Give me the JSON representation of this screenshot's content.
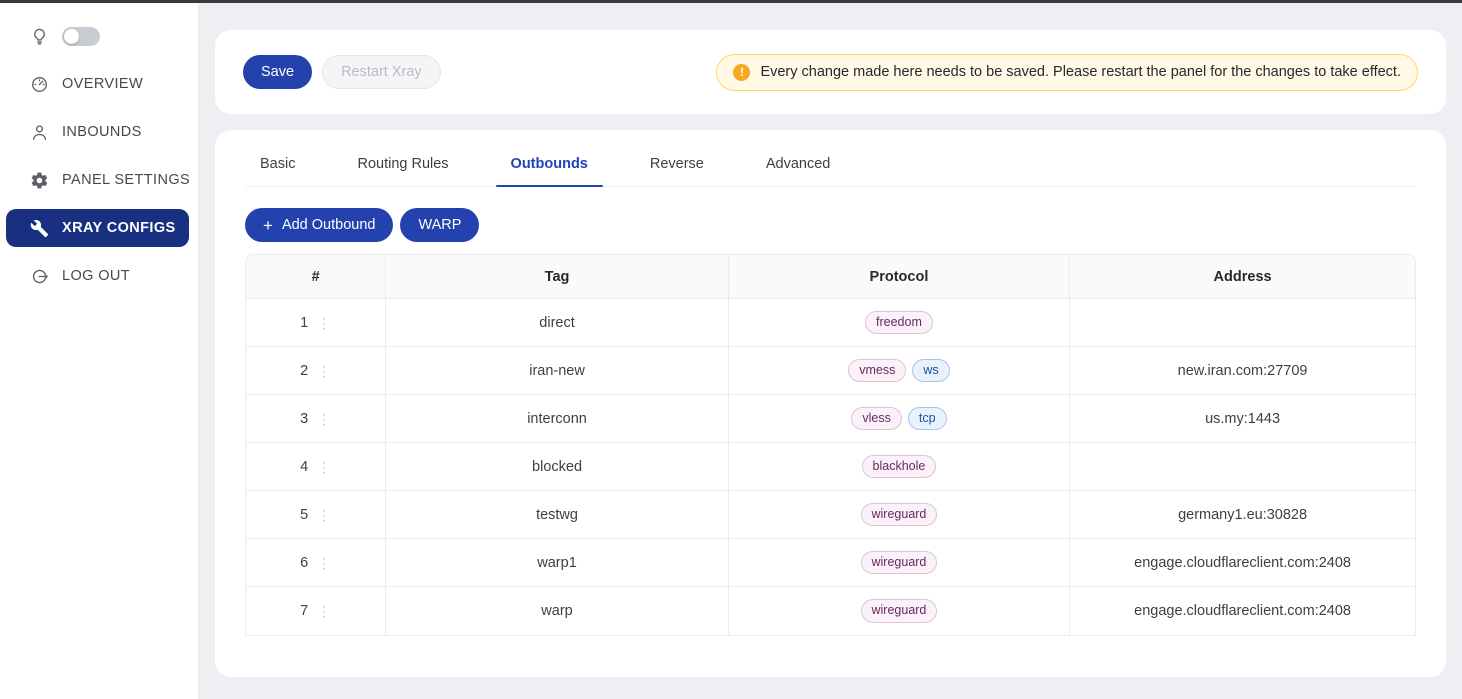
{
  "colors": {
    "primary_navy": "#2342ad",
    "sidebar_active_navy": "#192f7f",
    "tab_active_blue": "#1f42bd",
    "alert_bg": "#fff9e6",
    "alert_border": "#ffd666",
    "alert_icon_orange": "#f6a821",
    "tag_pink_text": "#6b2961",
    "tag_blue_text": "#1d4ea6"
  },
  "sidebar": {
    "theme_toggle": {
      "icon": "lightbulb-icon",
      "state": "off"
    },
    "items": [
      {
        "label": "OVERVIEW",
        "icon": "gauge-icon",
        "active": false
      },
      {
        "label": "INBOUNDS",
        "icon": "person-icon",
        "active": false
      },
      {
        "label": "PANEL SETTINGS",
        "icon": "gear-icon",
        "active": false
      },
      {
        "label": "XRAY CONFIGS",
        "icon": "wrench-icon",
        "active": true
      },
      {
        "label": "LOG OUT",
        "icon": "logout-icon",
        "active": false
      }
    ]
  },
  "toolbar": {
    "save_label": "Save",
    "restart_label": "Restart Xray",
    "alert_text": "Every change made here needs to be saved. Please restart the panel for the changes to take effect."
  },
  "tabs": {
    "items": [
      "Basic",
      "Routing Rules",
      "Outbounds",
      "Reverse",
      "Advanced"
    ],
    "active": "Outbounds"
  },
  "actions": {
    "add_outbound_label": "Add Outbound",
    "warp_label": "WARP"
  },
  "table": {
    "columns": [
      "#",
      "Tag",
      "Protocol",
      "Address"
    ],
    "rows": [
      {
        "num": "1",
        "tag": "direct",
        "protocols": [
          {
            "label": "freedom",
            "color": "pink"
          }
        ],
        "address": ""
      },
      {
        "num": "2",
        "tag": "iran-new",
        "protocols": [
          {
            "label": "vmess",
            "color": "pink"
          },
          {
            "label": "ws",
            "color": "blue"
          }
        ],
        "address": "new.iran.com:27709"
      },
      {
        "num": "3",
        "tag": "interconn",
        "protocols": [
          {
            "label": "vless",
            "color": "pink"
          },
          {
            "label": "tcp",
            "color": "blue"
          }
        ],
        "address": "us.my:1443"
      },
      {
        "num": "4",
        "tag": "blocked",
        "protocols": [
          {
            "label": "blackhole",
            "color": "pink"
          }
        ],
        "address": ""
      },
      {
        "num": "5",
        "tag": "testwg",
        "protocols": [
          {
            "label": "wireguard",
            "color": "pink"
          }
        ],
        "address": "germany1.eu:30828"
      },
      {
        "num": "6",
        "tag": "warp1",
        "protocols": [
          {
            "label": "wireguard",
            "color": "pink"
          }
        ],
        "address": "engage.cloudflareclient.com:2408"
      },
      {
        "num": "7",
        "tag": "warp",
        "protocols": [
          {
            "label": "wireguard",
            "color": "pink"
          }
        ],
        "address": "engage.cloudflareclient.com:2408"
      }
    ]
  }
}
